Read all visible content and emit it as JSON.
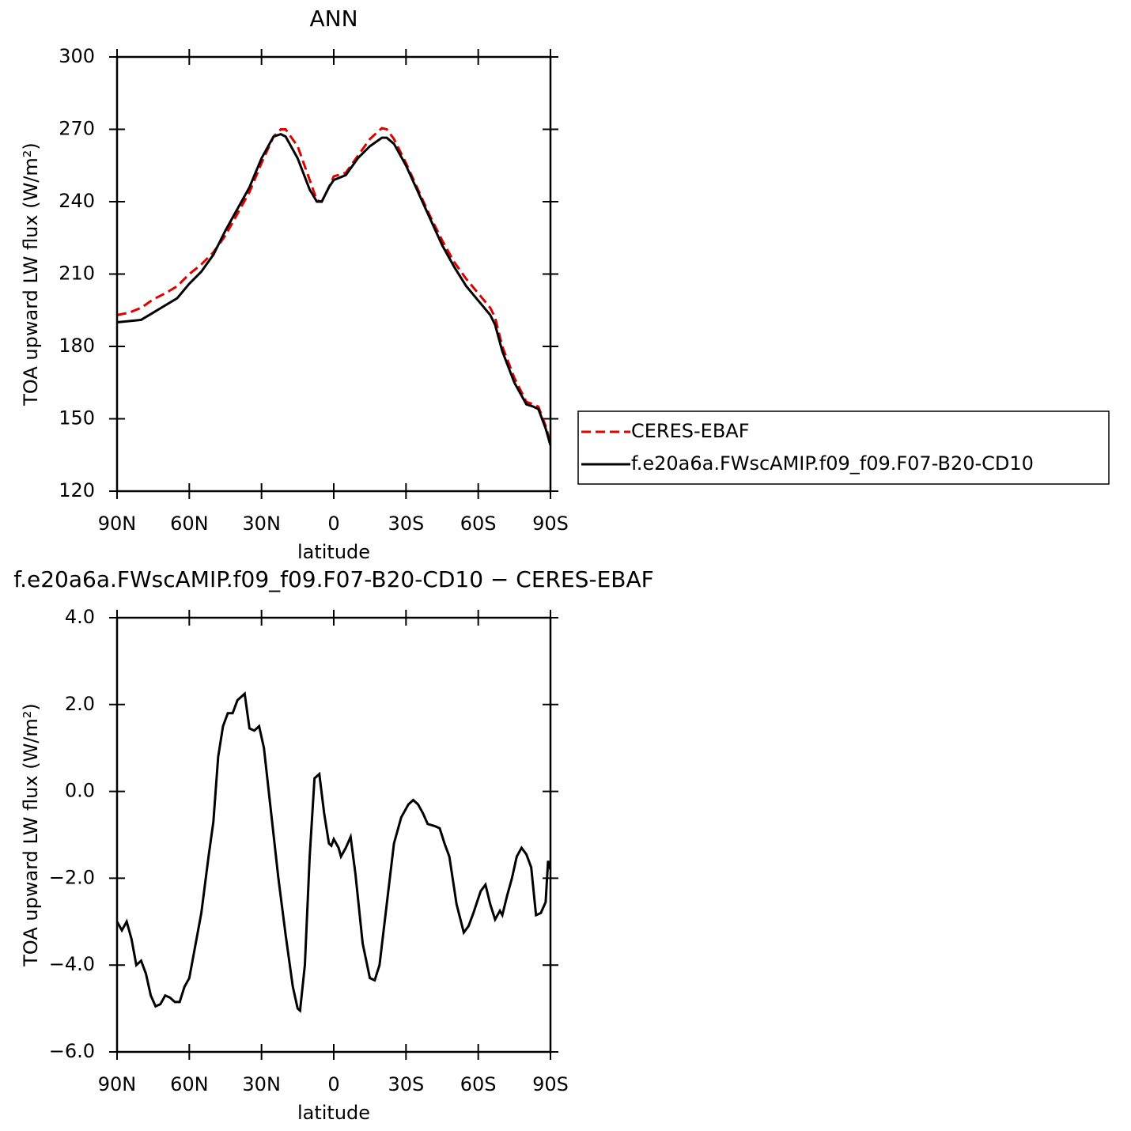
{
  "chart_data": [
    {
      "type": "line",
      "title": "ANN",
      "xlabel": "latitude",
      "ylabel": "TOA upward LW flux (W/m²)",
      "x": [
        90,
        85,
        80,
        75,
        70,
        65,
        60,
        55,
        50,
        45,
        40,
        35,
        30,
        25,
        22,
        20,
        15,
        10,
        7,
        5,
        2,
        0,
        -5,
        -10,
        -15,
        -20,
        -22,
        -25,
        -30,
        -35,
        -40,
        -45,
        -50,
        -55,
        -60,
        -65,
        -67,
        -70,
        -75,
        -80,
        -83,
        -85,
        -88,
        -90
      ],
      "series": [
        {
          "name": "CERES-EBAF",
          "color": "#e00000",
          "style": "dashed",
          "values": [
            193,
            194,
            196,
            199.5,
            202,
            205,
            210,
            214,
            219,
            226,
            235,
            244,
            256,
            267,
            270,
            270,
            263,
            249,
            240.5,
            240,
            246,
            250.5,
            252,
            259,
            266,
            270.5,
            270,
            266,
            256,
            245,
            234,
            224,
            215,
            208,
            202,
            196,
            192,
            180,
            167,
            157,
            156,
            155,
            147,
            140
          ]
        },
        {
          "name": "f.e20a6a.FWscAMIP.f09_f09.F07-B20-CD10",
          "color": "#000000",
          "style": "solid",
          "values": [
            190,
            190.5,
            191,
            194,
            197,
            200,
            206,
            211,
            218,
            228,
            237,
            246,
            258,
            267,
            268,
            267,
            258,
            245,
            240,
            240,
            246,
            249,
            251,
            258,
            263,
            266.5,
            266.5,
            264,
            255,
            244,
            233,
            222,
            213,
            205,
            199,
            193,
            189,
            178,
            165,
            156,
            155,
            154,
            146,
            139
          ]
        }
      ],
      "xlim": [
        90,
        -90
      ],
      "xticks": [
        {
          "value": 90,
          "label": "90N"
        },
        {
          "value": 60,
          "label": "60N"
        },
        {
          "value": 30,
          "label": "30N"
        },
        0,
        {
          "value": -30,
          "label": "30S"
        },
        {
          "value": -60,
          "label": "60S"
        },
        {
          "value": -90,
          "label": "90S"
        }
      ],
      "ylim": [
        120,
        300
      ],
      "yticks": [
        120,
        150,
        180,
        210,
        240,
        270,
        300
      ],
      "legend": "right"
    },
    {
      "type": "line",
      "title": "f.e20a6a.FWscAMIP.f09_f09.F07-B20-CD10 − CERES-EBAF",
      "xlabel": "latitude",
      "ylabel": "TOA upward LW flux (W/m²)",
      "x": [
        90,
        88,
        86,
        84,
        82,
        80,
        78,
        76,
        74,
        72,
        70,
        68,
        66,
        64,
        62,
        60,
        58,
        55,
        52,
        50,
        48,
        46,
        44,
        42,
        40,
        37,
        35,
        33,
        31,
        29,
        26,
        23,
        20,
        17,
        15,
        14,
        12,
        10,
        8,
        6,
        4,
        2,
        1,
        0,
        -2,
        -3,
        -5,
        -7,
        -9,
        -12,
        -15,
        -17,
        -19,
        -22,
        -25,
        -28,
        -31,
        -33,
        -35,
        -37,
        -39,
        -42,
        -44,
        -46,
        -48,
        -51,
        -54,
        -56,
        -58,
        -61,
        -63,
        -65,
        -67,
        -69,
        -70,
        -72,
        -74,
        -76,
        -78,
        -80,
        -82,
        -84,
        -86,
        -88,
        -89,
        -90
      ],
      "series": [
        {
          "name": null,
          "color": "#000000",
          "style": "solid",
          "values": [
            -3.0,
            -3.2,
            -3.0,
            -3.4,
            -4.0,
            -3.9,
            -4.2,
            -4.7,
            -4.95,
            -4.9,
            -4.7,
            -4.75,
            -4.85,
            -4.85,
            -4.5,
            -4.3,
            -3.7,
            -2.8,
            -1.5,
            -0.7,
            0.8,
            1.5,
            1.8,
            1.8,
            2.1,
            2.25,
            1.45,
            1.4,
            1.5,
            1.0,
            -0.5,
            -2.0,
            -3.3,
            -4.5,
            -5.0,
            -5.05,
            -4.0,
            -1.5,
            0.3,
            0.4,
            -0.5,
            -1.2,
            -1.25,
            -1.1,
            -1.3,
            -1.5,
            -1.3,
            -1.05,
            -1.9,
            -3.5,
            -4.3,
            -4.35,
            -4.0,
            -2.6,
            -1.2,
            -0.6,
            -0.3,
            -0.2,
            -0.3,
            -0.5,
            -0.75,
            -0.8,
            -0.85,
            -1.2,
            -1.5,
            -2.6,
            -3.25,
            -3.1,
            -2.8,
            -2.3,
            -2.15,
            -2.6,
            -2.95,
            -2.75,
            -2.85,
            -2.4,
            -2.0,
            -1.5,
            -1.3,
            -1.45,
            -1.75,
            -2.85,
            -2.8,
            -2.55,
            -1.6,
            -1.8
          ]
        }
      ],
      "xlim": [
        90,
        -90
      ],
      "xticks": [
        {
          "value": 90,
          "label": "90N"
        },
        {
          "value": 60,
          "label": "60N"
        },
        {
          "value": 30,
          "label": "30N"
        },
        0,
        {
          "value": -30,
          "label": "30S"
        },
        {
          "value": -60,
          "label": "60S"
        },
        {
          "value": -90,
          "label": "90S"
        }
      ],
      "ylim": [
        -6,
        4
      ],
      "yticks": [
        {
          "value": -6,
          "label": "−6.0"
        },
        {
          "value": -4,
          "label": "−4.0"
        },
        {
          "value": -2,
          "label": "−2.0"
        },
        {
          "value": 0,
          "label": "0.0"
        },
        {
          "value": 2,
          "label": "2.0"
        },
        {
          "value": 4,
          "label": "4.0"
        }
      ]
    }
  ]
}
